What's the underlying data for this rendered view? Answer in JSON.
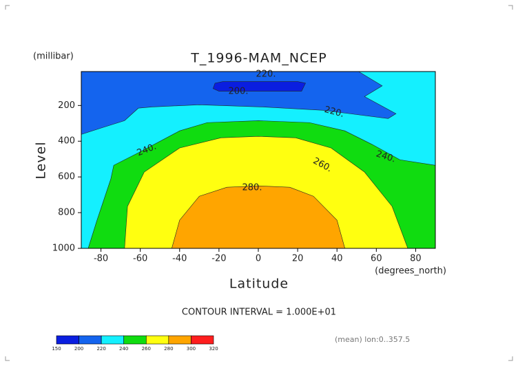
{
  "chart_data": {
    "type": "contour",
    "title": "T_1996-MAM_NCEP",
    "ylabel": "Level",
    "y_units": "(millibar)",
    "xlabel": "Latitude",
    "x_units": "(degrees_north)",
    "contour_interval": "CONTOUR INTERVAL = 1.000E+01",
    "note": "(mean) lon:0..357.5",
    "xlim": [
      -90,
      90
    ],
    "xticks": [
      -80,
      -60,
      -40,
      -20,
      0,
      20,
      40,
      60,
      80
    ],
    "ylim": [
      1000,
      10
    ],
    "yticks": [
      200,
      400,
      600,
      800,
      1000
    ],
    "colorbar": {
      "levels": [
        150,
        200,
        220,
        240,
        260,
        280,
        300,
        320
      ],
      "colors": [
        "#0a1ee0",
        "#1464ee",
        "#14f0ff",
        "#10dc10",
        "#ffff10",
        "#ffa500",
        "#ff1e1e"
      ]
    },
    "regions": [
      {
        "level": 220,
        "color": "#14f0ff",
        "lat": [
          -90,
          90,
          90,
          -90
        ],
        "pressure": [
          10,
          10,
          1000,
          1000
        ]
      },
      {
        "level": 200,
        "color": "#1464ee",
        "lat": [
          -90,
          51,
          63,
          54,
          70,
          66,
          33,
          2,
          -30,
          -54,
          -61,
          -68,
          -79,
          -90
        ],
        "pressure": [
          10,
          10,
          90,
          150,
          246,
          273,
          227,
          208,
          196,
          208,
          215,
          285,
          323,
          362
        ]
      },
      {
        "level": 150,
        "color": "#0a1ee0",
        "lat": [
          -22,
          -18,
          20,
          24,
          22,
          -20,
          -23
        ],
        "pressure": [
          75,
          66,
          66,
          75,
          120,
          120,
          105
        ]
      },
      {
        "level": 240,
        "color": "#10dc10",
        "lat": [
          -86.5,
          -82,
          -75,
          -73.5,
          -61,
          -40,
          -26,
          0,
          26,
          44,
          58,
          72,
          90,
          90
        ],
        "pressure": [
          1000,
          842,
          612,
          535,
          465,
          342,
          296,
          285,
          296,
          342,
          419,
          504,
          535,
          1000
        ]
      },
      {
        "level": 260,
        "color": "#ffff10",
        "lat": [
          -68,
          -66.5,
          -58,
          -40,
          -19,
          0,
          19,
          37,
          54,
          68,
          76
        ],
        "pressure": [
          1000,
          765,
          573,
          438,
          381,
          373,
          381,
          438,
          573,
          765,
          1000
        ]
      },
      {
        "level": 280,
        "color": "#ffa500",
        "lat": [
          -44,
          -40,
          -30,
          -16,
          0,
          16,
          28,
          40,
          44
        ],
        "pressure": [
          1000,
          842,
          708,
          658,
          650,
          658,
          708,
          842,
          1000
        ]
      }
    ],
    "contour_labels": [
      {
        "value": 220,
        "label": "220."
      },
      {
        "value": 200,
        "label": "200."
      },
      {
        "value": 220,
        "label": "220."
      },
      {
        "value": 240,
        "label": "240."
      },
      {
        "value": 260,
        "label": "260."
      },
      {
        "value": 240,
        "label": "240."
      },
      {
        "value": 280,
        "label": "280."
      }
    ]
  }
}
